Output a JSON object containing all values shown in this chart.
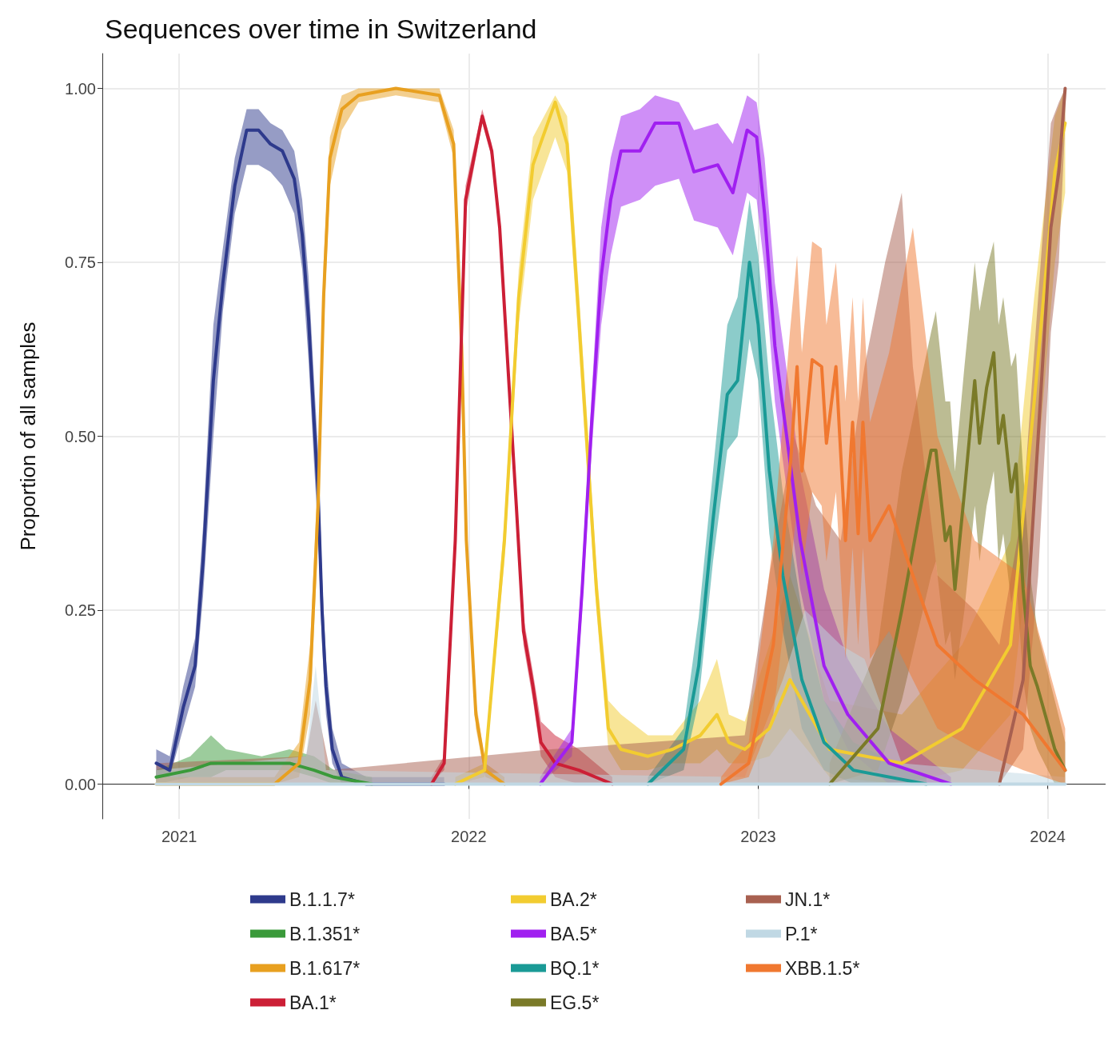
{
  "chart_data": {
    "type": "line",
    "title": "Sequences over time in Switzerland",
    "ylabel": "Proportion of all samples",
    "xlim": [
      "2020-09-26",
      "2024-03-14"
    ],
    "xticks": [
      {
        "value": "2021-01-01",
        "label": "2021"
      },
      {
        "value": "2022-01-01",
        "label": "2022"
      },
      {
        "value": "2023-01-01",
        "label": "2023"
      },
      {
        "value": "2024-01-01",
        "label": "2024"
      }
    ],
    "ylim": [
      -0.05,
      1.05
    ],
    "yticks": [
      {
        "value": 0,
        "label": "0.00"
      },
      {
        "value": 0.25,
        "label": "0.25"
      },
      {
        "value": 0.5,
        "label": "0.50"
      },
      {
        "value": 0.75,
        "label": "0.75"
      },
      {
        "value": 1,
        "label": "1.00"
      }
    ],
    "grid": true,
    "legend": "bottom",
    "series": [
      {
        "name": "B.1.1.7*",
        "color": "#2e3a8c",
        "x": [
          "2020-12-03",
          "2020-12-20",
          "2021-01-06",
          "2021-01-21",
          "2021-01-31",
          "2021-02-13",
          "2021-02-25",
          "2021-03-12",
          "2021-03-27",
          "2021-04-11",
          "2021-04-26",
          "2021-05-11",
          "2021-05-26",
          "2021-06-05",
          "2021-06-13",
          "2021-06-20",
          "2021-06-25",
          "2021-06-30",
          "2021-07-05",
          "2021-07-13",
          "2021-07-25",
          "2021-08-25",
          "2021-12-01"
        ],
        "values": [
          0.03,
          0.02,
          0.11,
          0.17,
          0.32,
          0.58,
          0.72,
          0.86,
          0.94,
          0.94,
          0.92,
          0.91,
          0.87,
          0.79,
          0.67,
          0.52,
          0.42,
          0.25,
          0.14,
          0.05,
          0.01,
          0.0,
          0.0
        ],
        "lower": [
          0.01,
          0.01,
          0.08,
          0.14,
          0.27,
          0.5,
          0.68,
          0.82,
          0.89,
          0.89,
          0.88,
          0.86,
          0.82,
          0.74,
          0.61,
          0.46,
          0.36,
          0.2,
          0.1,
          0.03,
          0.0,
          0.0,
          0.0
        ],
        "upper": [
          0.05,
          0.04,
          0.14,
          0.21,
          0.37,
          0.66,
          0.77,
          0.9,
          0.97,
          0.97,
          0.95,
          0.94,
          0.91,
          0.84,
          0.73,
          0.58,
          0.48,
          0.3,
          0.18,
          0.08,
          0.03,
          0.01,
          0.01
        ]
      },
      {
        "name": "B.1.351*",
        "color": "#3a9a3a",
        "x": [
          "2020-12-03",
          "2021-01-15",
          "2021-02-10",
          "2021-03-01",
          "2021-04-15",
          "2021-05-20",
          "2021-06-20",
          "2021-07-15",
          "2021-09-01"
        ],
        "values": [
          0.01,
          0.02,
          0.03,
          0.03,
          0.03,
          0.03,
          0.02,
          0.01,
          0.0
        ],
        "lower": [
          0.0,
          0.01,
          0.01,
          0.02,
          0.02,
          0.02,
          0.01,
          0.0,
          0.0
        ],
        "upper": [
          0.02,
          0.04,
          0.07,
          0.05,
          0.04,
          0.05,
          0.04,
          0.02,
          0.01
        ]
      },
      {
        "name": "B.1.617*",
        "color": "#e8a020",
        "x": [
          "2020-12-03",
          "2021-05-01",
          "2021-06-01",
          "2021-06-15",
          "2021-06-25",
          "2021-07-02",
          "2021-07-10",
          "2021-07-25",
          "2021-08-15",
          "2021-10-01",
          "2021-11-25",
          "2021-12-13",
          "2021-12-23",
          "2021-12-29",
          "2022-01-10",
          "2022-01-22",
          "2022-02-15"
        ],
        "values": [
          0.0,
          0.0,
          0.03,
          0.15,
          0.4,
          0.7,
          0.9,
          0.97,
          0.99,
          1.0,
          0.99,
          0.92,
          0.63,
          0.35,
          0.1,
          0.02,
          0.0
        ],
        "lower": [
          0.0,
          0.0,
          0.01,
          0.1,
          0.35,
          0.65,
          0.86,
          0.94,
          0.98,
          0.99,
          0.98,
          0.9,
          0.6,
          0.32,
          0.08,
          0.01,
          0.0
        ],
        "upper": [
          0.01,
          0.01,
          0.06,
          0.2,
          0.45,
          0.75,
          0.93,
          0.99,
          1.0,
          1.0,
          1.0,
          0.94,
          0.66,
          0.38,
          0.12,
          0.03,
          0.01
        ]
      },
      {
        "name": "BA.1*",
        "color": "#cc1f36",
        "x": [
          "2021-11-15",
          "2021-12-01",
          "2021-12-15",
          "2021-12-28",
          "2022-01-18",
          "2022-01-30",
          "2022-02-09",
          "2022-02-21",
          "2022-03-02",
          "2022-03-11",
          "2022-03-23",
          "2022-04-02",
          "2022-04-20",
          "2022-05-20",
          "2022-07-01"
        ],
        "values": [
          0.0,
          0.03,
          0.35,
          0.84,
          0.96,
          0.91,
          0.8,
          0.57,
          0.4,
          0.22,
          0.14,
          0.06,
          0.03,
          0.02,
          0.0
        ],
        "lower": [
          0.0,
          0.02,
          0.33,
          0.82,
          0.95,
          0.9,
          0.79,
          0.55,
          0.38,
          0.2,
          0.12,
          0.04,
          0.01,
          0.0,
          0.0
        ],
        "upper": [
          0.01,
          0.04,
          0.37,
          0.86,
          0.97,
          0.92,
          0.81,
          0.59,
          0.42,
          0.24,
          0.16,
          0.09,
          0.07,
          0.05,
          0.01
        ]
      },
      {
        "name": "BA.2*",
        "color": "#f2cc30",
        "x": [
          "2021-12-15",
          "2022-01-21",
          "2022-02-15",
          "2022-03-05",
          "2022-03-23",
          "2022-04-20",
          "2022-05-05",
          "2022-05-18",
          "2022-05-30",
          "2022-06-11",
          "2022-06-26",
          "2022-07-12",
          "2022-08-15",
          "2022-09-15",
          "2022-10-20",
          "2022-11-10",
          "2022-11-25",
          "2022-12-15",
          "2023-01-15",
          "2023-02-10",
          "2023-04-01",
          "2023-07-01",
          "2023-09-15",
          "2023-11-15",
          "2023-12-15",
          "2024-01-10",
          "2024-01-23"
        ],
        "values": [
          0.0,
          0.02,
          0.35,
          0.7,
          0.89,
          0.98,
          0.92,
          0.7,
          0.49,
          0.28,
          0.08,
          0.05,
          0.04,
          0.05,
          0.07,
          0.1,
          0.06,
          0.05,
          0.08,
          0.15,
          0.05,
          0.03,
          0.08,
          0.2,
          0.55,
          0.88,
          0.95
        ],
        "lower": [
          0.0,
          0.01,
          0.32,
          0.66,
          0.84,
          0.93,
          0.88,
          0.66,
          0.45,
          0.25,
          0.05,
          0.02,
          0.02,
          0.03,
          0.03,
          0.05,
          0.03,
          0.03,
          0.04,
          0.08,
          0.01,
          0.0,
          0.02,
          0.1,
          0.4,
          0.75,
          0.85
        ],
        "upper": [
          0.01,
          0.03,
          0.38,
          0.74,
          0.93,
          0.99,
          0.96,
          0.74,
          0.53,
          0.31,
          0.12,
          0.1,
          0.07,
          0.07,
          0.12,
          0.18,
          0.1,
          0.09,
          0.2,
          0.3,
          0.12,
          0.1,
          0.2,
          0.35,
          0.7,
          0.96,
          1.0
        ]
      },
      {
        "name": "BA.5*",
        "color": "#a020f0",
        "x": [
          "2022-04-01",
          "2022-05-11",
          "2022-05-24",
          "2022-06-05",
          "2022-06-17",
          "2022-06-29",
          "2022-07-12",
          "2022-08-05",
          "2022-08-24",
          "2022-09-23",
          "2022-10-12",
          "2022-11-11",
          "2022-11-30",
          "2022-12-18",
          "2022-12-30",
          "2023-01-09",
          "2023-01-22",
          "2023-02-23",
          "2023-03-25",
          "2023-04-24",
          "2023-06-15",
          "2023-09-01"
        ],
        "values": [
          0.0,
          0.06,
          0.28,
          0.52,
          0.73,
          0.84,
          0.91,
          0.91,
          0.95,
          0.95,
          0.88,
          0.89,
          0.85,
          0.94,
          0.93,
          0.82,
          0.63,
          0.35,
          0.17,
          0.1,
          0.03,
          0.0
        ],
        "lower": [
          0.0,
          0.04,
          0.25,
          0.48,
          0.66,
          0.76,
          0.83,
          0.84,
          0.86,
          0.87,
          0.81,
          0.8,
          0.76,
          0.85,
          0.84,
          0.74,
          0.55,
          0.28,
          0.12,
          0.05,
          0.0,
          0.0
        ],
        "upper": [
          0.01,
          0.08,
          0.31,
          0.56,
          0.8,
          0.9,
          0.96,
          0.97,
          0.99,
          0.98,
          0.94,
          0.95,
          0.92,
          0.99,
          0.98,
          0.9,
          0.72,
          0.45,
          0.28,
          0.18,
          0.08,
          0.01
        ]
      },
      {
        "name": "BQ.1*",
        "color": "#1a9a96",
        "x": [
          "2022-08-15",
          "2022-09-29",
          "2022-10-18",
          "2022-11-05",
          "2022-11-23",
          "2022-12-06",
          "2022-12-21",
          "2023-01-01",
          "2023-01-15",
          "2023-02-01",
          "2023-02-25",
          "2023-03-25",
          "2023-05-01",
          "2023-08-01"
        ],
        "values": [
          0.0,
          0.05,
          0.17,
          0.38,
          0.56,
          0.58,
          0.75,
          0.66,
          0.45,
          0.3,
          0.15,
          0.06,
          0.02,
          0.0
        ],
        "lower": [
          0.0,
          0.02,
          0.12,
          0.32,
          0.48,
          0.5,
          0.64,
          0.58,
          0.36,
          0.22,
          0.08,
          0.02,
          0.0,
          0.0
        ],
        "upper": [
          0.01,
          0.08,
          0.24,
          0.45,
          0.66,
          0.7,
          0.84,
          0.76,
          0.58,
          0.42,
          0.25,
          0.12,
          0.06,
          0.01
        ]
      },
      {
        "name": "EG.5*",
        "color": "#7a7a28",
        "x": [
          "2023-04-01",
          "2023-06-01",
          "2023-07-01",
          "2023-08-07",
          "2023-08-13",
          "2023-08-25",
          "2023-08-31",
          "2023-09-06",
          "2023-09-18",
          "2023-10-01",
          "2023-10-07",
          "2023-10-16",
          "2023-10-25",
          "2023-10-31",
          "2023-11-06",
          "2023-11-16",
          "2023-11-22",
          "2023-12-01",
          "2023-12-10",
          "2023-12-19",
          "2024-01-10",
          "2024-01-23"
        ],
        "values": [
          0.0,
          0.08,
          0.25,
          0.48,
          0.48,
          0.35,
          0.37,
          0.28,
          0.42,
          0.58,
          0.49,
          0.57,
          0.62,
          0.49,
          0.53,
          0.42,
          0.46,
          0.28,
          0.17,
          0.14,
          0.05,
          0.02
        ],
        "lower": [
          0.0,
          0.02,
          0.12,
          0.3,
          0.32,
          0.2,
          0.22,
          0.15,
          0.25,
          0.4,
          0.32,
          0.4,
          0.45,
          0.32,
          0.36,
          0.26,
          0.3,
          0.15,
          0.08,
          0.05,
          0.0,
          0.0
        ],
        "upper": [
          0.03,
          0.2,
          0.45,
          0.65,
          0.68,
          0.55,
          0.55,
          0.45,
          0.6,
          0.75,
          0.68,
          0.74,
          0.78,
          0.66,
          0.7,
          0.6,
          0.62,
          0.45,
          0.3,
          0.22,
          0.12,
          0.06
        ]
      },
      {
        "name": "JN.1*",
        "color": "#a86050",
        "x": [
          "2020-12-03",
          "2021-06-10",
          "2021-06-22",
          "2021-07-10",
          "2022-04-15",
          "2022-12-15",
          "2023-01-15",
          "2023-02-15",
          "2023-03-15",
          "2023-04-15",
          "2023-05-15",
          "2023-06-10",
          "2023-07-01",
          "2023-07-15",
          "2023-08-15",
          "2023-10-01",
          "2023-11-01",
          "2023-12-01",
          "2023-12-20",
          "2024-01-05",
          "2024-01-15",
          "2024-01-23"
        ],
        "values": [
          null,
          null,
          null,
          null,
          null,
          null,
          null,
          null,
          null,
          null,
          null,
          null,
          null,
          null,
          null,
          null,
          0.0,
          0.15,
          0.5,
          0.8,
          0.88,
          1.0
        ],
        "lower": [
          0.0,
          0.0,
          0.0,
          0.0,
          0.0,
          0.0,
          0.0,
          0.0,
          0.0,
          0.0,
          0.0,
          0.0,
          0.0,
          0.0,
          0.0,
          0.0,
          0.0,
          0.05,
          0.3,
          0.65,
          0.75,
          0.95
        ],
        "upper": [
          0.03,
          0.04,
          0.12,
          0.02,
          0.05,
          0.07,
          0.3,
          0.5,
          0.4,
          0.35,
          0.6,
          0.75,
          0.85,
          0.6,
          0.3,
          0.25,
          0.2,
          0.4,
          0.7,
          0.95,
          0.98,
          1.0
        ]
      },
      {
        "name": "P.1*",
        "color": "#c0d8e4",
        "x": [
          "2020-12-03",
          "2021-06-10",
          "2021-06-22",
          "2021-07-05",
          "2022-12-15",
          "2023-02-01",
          "2023-03-01",
          "2023-04-15",
          "2023-05-15",
          "2023-07-01",
          "2024-01-23"
        ],
        "values": [
          0.0,
          0.0,
          0.0,
          0.0,
          0.0,
          0.0,
          0.0,
          0.0,
          0.0,
          0.0,
          0.0
        ],
        "lower": [
          0.0,
          0.0,
          0.0,
          0.0,
          0.0,
          0.0,
          0.0,
          0.0,
          0.0,
          0.0,
          0.0
        ],
        "upper": [
          0.02,
          0.04,
          0.17,
          0.02,
          0.01,
          0.15,
          0.25,
          0.2,
          0.18,
          0.03,
          0.01
        ]
      },
      {
        "name": "XBB.1.5*",
        "color": "#f07830",
        "x": [
          "2022-11-15",
          "2022-12-20",
          "2023-01-20",
          "2023-02-10",
          "2023-02-19",
          "2023-02-25",
          "2023-03-10",
          "2023-03-22",
          "2023-03-28",
          "2023-04-09",
          "2023-04-21",
          "2023-04-30",
          "2023-05-07",
          "2023-05-13",
          "2023-05-22",
          "2023-06-15",
          "2023-07-15",
          "2023-08-15",
          "2023-10-01",
          "2023-12-01",
          "2024-01-23"
        ],
        "values": [
          0.0,
          0.03,
          0.2,
          0.45,
          0.6,
          0.45,
          0.61,
          0.6,
          0.49,
          0.6,
          0.35,
          0.52,
          0.36,
          0.52,
          0.35,
          0.4,
          0.3,
          0.2,
          0.15,
          0.1,
          0.02
        ],
        "lower": [
          0.0,
          0.01,
          0.1,
          0.3,
          0.4,
          0.3,
          0.42,
          0.4,
          0.32,
          0.42,
          0.18,
          0.34,
          0.2,
          0.34,
          0.18,
          0.22,
          0.15,
          0.08,
          0.05,
          0.02,
          0.0
        ],
        "upper": [
          0.01,
          0.06,
          0.35,
          0.65,
          0.76,
          0.62,
          0.78,
          0.77,
          0.66,
          0.75,
          0.55,
          0.7,
          0.55,
          0.7,
          0.52,
          0.62,
          0.8,
          0.5,
          0.35,
          0.3,
          0.08
        ]
      }
    ]
  }
}
